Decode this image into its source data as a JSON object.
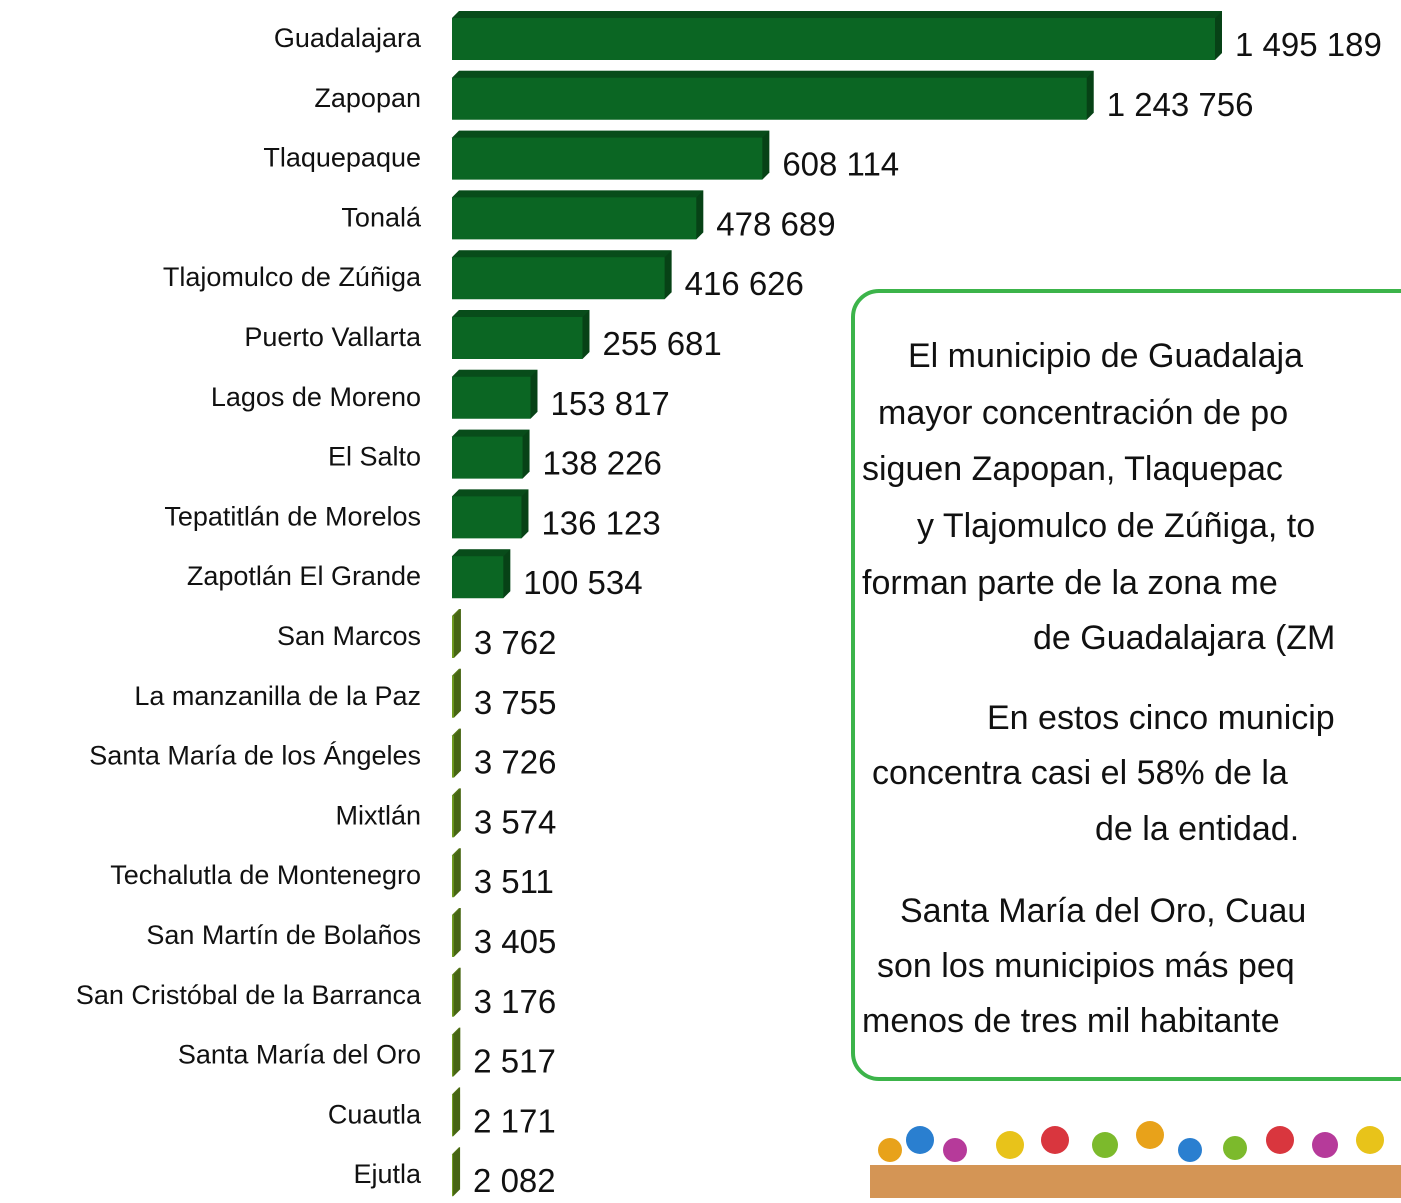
{
  "chart_data": {
    "type": "bar",
    "orientation": "horizontal",
    "categories": [
      "Guadalajara",
      "Zapopan",
      "Tlaquepaque",
      "Tonalá",
      "Tlajomulco de Zúñiga",
      "Puerto Vallarta",
      "Lagos de Moreno",
      "El Salto",
      "Tepatitlán de Morelos",
      "Zapotlán El Grande",
      "San Marcos",
      "La manzanilla de la Paz",
      "Santa María de los Ángeles",
      "Mixtlán",
      "Techalutla de Montenegro",
      "San Martín de Bolaños",
      "San Cristóbal de la Barranca",
      "Santa María del Oro",
      "Cuautla",
      "Ejutla"
    ],
    "values": [
      1495189,
      1243756,
      608114,
      478689,
      416626,
      255681,
      153817,
      138226,
      136123,
      100534,
      3762,
      3755,
      3726,
      3574,
      3511,
      3405,
      3176,
      2517,
      2171,
      2082
    ],
    "value_labels": [
      "1 495 189",
      "1 243 756",
      "608 114",
      "478 689",
      "416 626",
      "255 681",
      "153 817",
      "138 226",
      "136 123",
      "100 534",
      "3 762",
      "3 755",
      "3 726",
      "3 574",
      "3 511",
      "3 405",
      "3 176",
      "2 517",
      "2 171",
      "2 082"
    ],
    "colors": [
      "#0b6623",
      "#0b6623",
      "#0b6623",
      "#0b6623",
      "#0b6623",
      "#0b6623",
      "#0b6623",
      "#0b6623",
      "#0b6623",
      "#0b6623",
      "#6e9b1f",
      "#6e9b1f",
      "#6e9b1f",
      "#6e9b1f",
      "#6e9b1f",
      "#6e9b1f",
      "#6e9b1f",
      "#6e9b1f",
      "#6e9b1f",
      "#6e9b1f"
    ],
    "annotation_lines": [
      "El municipio de Guadalaja",
      "mayor concentración de po",
      "siguen Zapopan, Tlaquepac",
      "y Tlajomulco de Zúñiga, to",
      "forman parte de la zona me",
      "de Guadalajara (ZM",
      "En estos cinco municip",
      "concentra casi el 58% de la",
      "de la entidad.",
      "Santa María del Oro, Cuau",
      "son los municipios más peq",
      "menos de tres mil habitante"
    ]
  }
}
